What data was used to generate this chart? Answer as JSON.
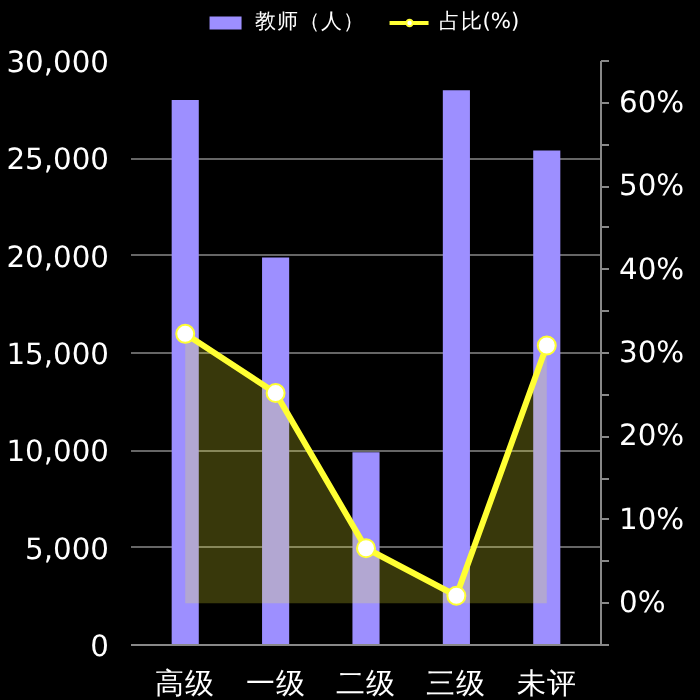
{
  "chart_data": {
    "type": "bar",
    "categories": [
      "高级",
      "一级",
      "二级",
      "三级",
      "未评"
    ],
    "series": [
      {
        "name": "教师（人）",
        "color": "#9d8fff",
        "values": [
          28000,
          19900,
          9900,
          28500,
          25400
        ]
      },
      {
        "name": "占比(%)",
        "type": "area",
        "axis": "y2",
        "color": "#ffff33",
        "marker": "circle",
        "values": [
          32.3,
          25.2,
          6.6,
          0.9,
          30.9
        ]
      }
    ],
    "ylim": [
      0,
      30000
    ],
    "yticks": [
      {
        "value": 0,
        "label": "0"
      },
      {
        "value": 5000,
        "label": "5,000"
      },
      {
        "value": 10000,
        "label": "10,000"
      },
      {
        "value": 15000,
        "label": "15,000"
      },
      {
        "value": 20000,
        "label": "20,000"
      },
      {
        "value": 25000,
        "label": "25,000"
      },
      {
        "value": 30000,
        "label": "30,000"
      }
    ],
    "y2lim": [
      -5,
      65
    ],
    "y2ticks": [
      {
        "value": -5,
        "label": null
      },
      {
        "value": 0,
        "label": "0%"
      },
      {
        "value": 5,
        "label": null
      },
      {
        "value": 10,
        "label": "10%"
      },
      {
        "value": 15,
        "label": null
      },
      {
        "value": 20,
        "label": "20%"
      },
      {
        "value": 25,
        "label": null
      },
      {
        "value": 30,
        "label": "30%"
      },
      {
        "value": 35,
        "label": null
      },
      {
        "value": 40,
        "label": "40%"
      },
      {
        "value": 45,
        "label": null
      },
      {
        "value": 50,
        "label": "50%"
      },
      {
        "value": 55,
        "label": null
      },
      {
        "value": 60,
        "label": "60%"
      },
      {
        "value": 65,
        "label": null
      }
    ],
    "grid": "y",
    "legend": "top"
  }
}
